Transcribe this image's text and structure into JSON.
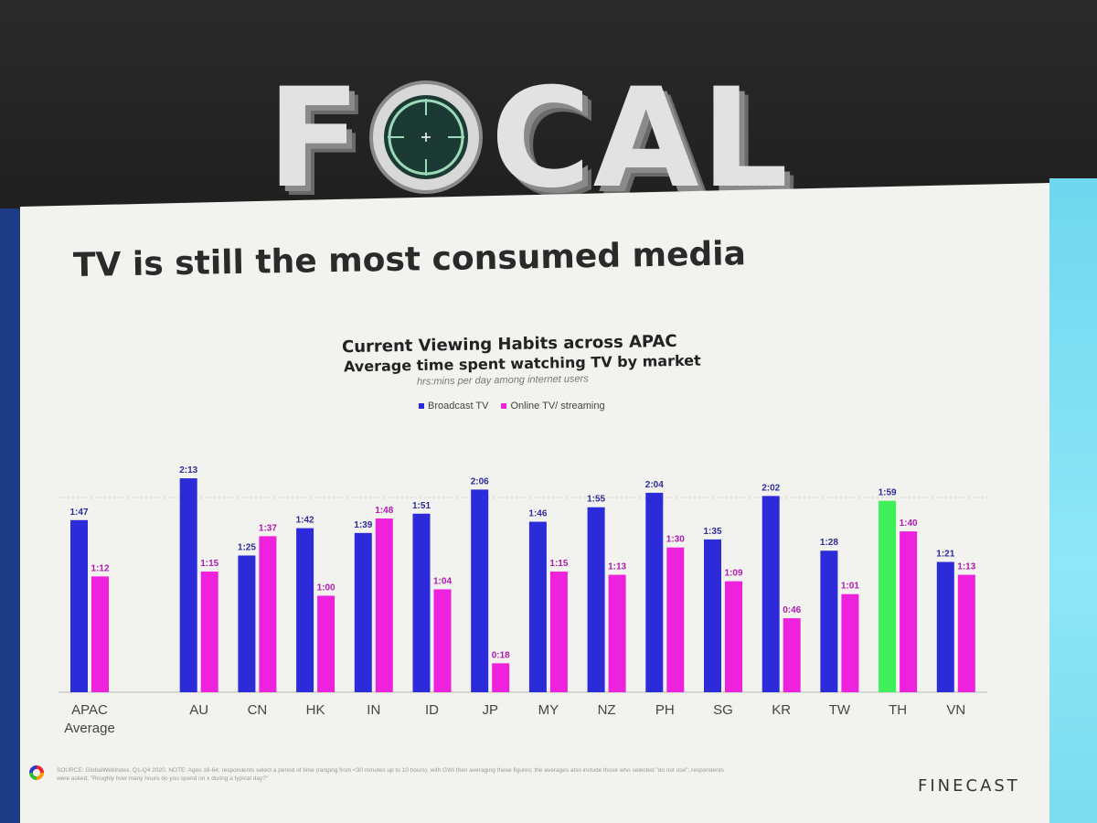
{
  "venue_sign": {
    "letters": [
      "F",
      "C",
      "A",
      "L"
    ]
  },
  "slide": {
    "title": "TV is still the most consumed media",
    "source_note": "SOURCE: GlobalWebIndex, Q1-Q4 2020. NOTE: Ages 16-64; respondents select a period of time (ranging from <30 minutes up to 10 hours), with GWI then averaging these figures; the averages also include those who selected \"do not use\"; respondents were asked, \"Roughly how many hours do you spend on x during a typical day?\"",
    "brand": "FINECAST"
  },
  "colors": {
    "broadcast": "#2b2bd9",
    "online": "#ee22dd",
    "highlight": "#3ef05a"
  },
  "chart_data": {
    "type": "bar",
    "title": "Current Viewing Habits across APAC",
    "subtitle": "Average time spent watching TV by market",
    "note": "hrs:mins per day among internet users",
    "categories": [
      "APAC Average",
      "AU",
      "CN",
      "HK",
      "IN",
      "ID",
      "JP",
      "MY",
      "NZ",
      "PH",
      "SG",
      "KR",
      "TW",
      "TH",
      "VN"
    ],
    "series": [
      {
        "name": "Broadcast TV",
        "values": [
          107,
          133,
          85,
          102,
          99,
          111,
          126,
          106,
          115,
          124,
          95,
          122,
          88,
          119,
          81
        ],
        "labels": [
          "1:47",
          "2:13",
          "1:25",
          "1:42",
          "1:39",
          "1:51",
          "2:06",
          "1:46",
          "1:55",
          "2:04",
          "1:35",
          "2:02",
          "1:28",
          "1:59",
          "1:21"
        ]
      },
      {
        "name": "Online TV/ streaming",
        "values": [
          72,
          75,
          97,
          60,
          108,
          64,
          18,
          75,
          73,
          90,
          69,
          46,
          61,
          100,
          73
        ],
        "labels": [
          "1:12",
          "1:15",
          "1:37",
          "1:00",
          "1:48",
          "1:04",
          "0:18",
          "1:15",
          "1:13",
          "1:30",
          "1:09",
          "0:46",
          "1:01",
          "1:40",
          "1:13"
        ]
      }
    ],
    "highlight_category": "TH",
    "ylim": [
      0,
      140
    ],
    "legend": "top"
  }
}
